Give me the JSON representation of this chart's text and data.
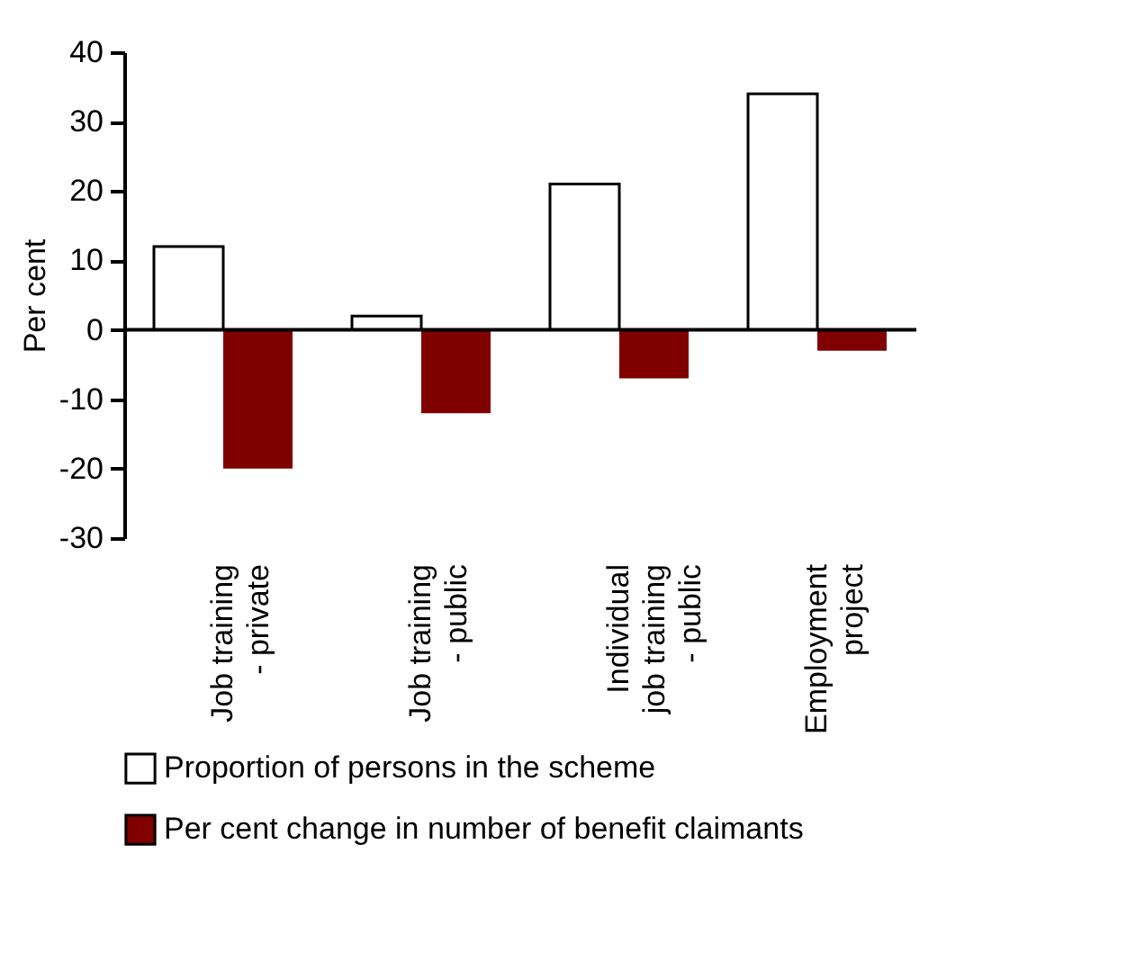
{
  "chart_data": {
    "type": "bar",
    "ylabel": "Per cent",
    "categories": [
      "Job training\n- private",
      "Job training\n- public",
      "Individual\njob training\n- public",
      "Employment\nproject"
    ],
    "series": [
      {
        "name": "Proportion of persons in the scheme",
        "color": "#ffffff",
        "values": [
          12,
          2,
          21,
          34
        ]
      },
      {
        "name": "Per cent change in number of benefit claimants",
        "color": "#800000",
        "values": [
          -20,
          -12,
          -7,
          -3
        ]
      }
    ],
    "ylim": [
      -30,
      40
    ],
    "yticks": [
      -30,
      -20,
      -10,
      0,
      10,
      20,
      30,
      40
    ],
    "ref_lines": [
      {
        "axis": "y",
        "value": 0,
        "color": "#000000"
      }
    ],
    "grid": false,
    "legend": "bottom"
  }
}
